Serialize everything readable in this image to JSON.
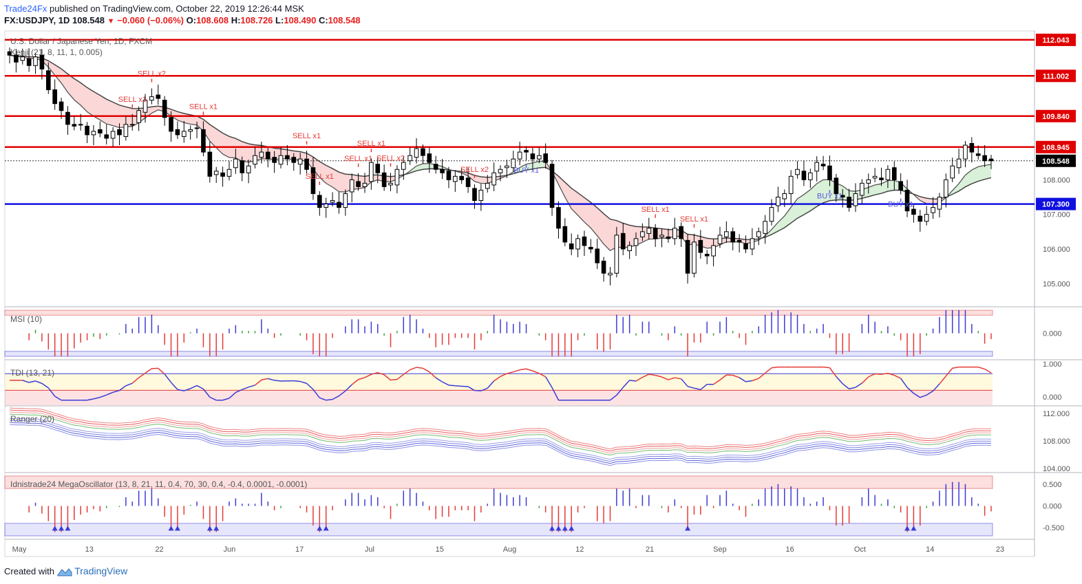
{
  "header": {
    "publisher": "Trade24Fx",
    "published_text": "published on TradingView.com, October 22, 2019 12:26:44 MSK",
    "symbol": "FX:USDJPY, 1D",
    "last": "108.548",
    "change": "−0.060 (−0.06%)",
    "open_label": "O:",
    "open": "108.608",
    "high_label": "H:",
    "high": "108.726",
    "low_label": "L:",
    "low": "108.490",
    "close_label": "C:",
    "close": "108.548"
  },
  "legend": {
    "main_title": "U.S. Dollar / Japanese Yen, 1D, FXCM",
    "kenji": "Kenji (21, 8, 11, 1, 0.005)",
    "msi": "MSI (10)",
    "tdi": "TDI (13, 21)",
    "ranger": "Ranger (20)",
    "mega": "Idnistrade24 MegaOscillator (13, 8, 21, 11, 0.4, 70, 30, 0.4, -0.4, 0.0001, -0.0001)"
  },
  "footer": {
    "created_with": "Created with",
    "brand": "TradingView"
  },
  "colors": {
    "up": "#ffffff",
    "down": "#000000",
    "resistance": "#e00000",
    "support": "#1010e0",
    "sell": "#e53935",
    "buy": "#5b5bdc",
    "price_tag": "#000000"
  },
  "chart_data": {
    "type": "candlestick",
    "price_axis": {
      "ticks": [
        "105.000",
        "106.000",
        "107.000",
        "108.000",
        "109.000"
      ],
      "ylim": [
        104.35,
        112.3
      ]
    },
    "time_axis": {
      "ticks": [
        "May",
        "13",
        "22",
        "Jun",
        "17",
        "Jul",
        "15",
        "Aug",
        "12",
        "21",
        "Sep",
        "16",
        "Oct",
        "14",
        "23"
      ]
    },
    "levels": [
      {
        "value": 112.043,
        "label": "112.043",
        "kind": "resistance"
      },
      {
        "value": 111.002,
        "label": "111.002",
        "kind": "resistance"
      },
      {
        "value": 109.84,
        "label": "109.840",
        "kind": "resistance"
      },
      {
        "value": 108.945,
        "label": "108.945",
        "kind": "resistance"
      },
      {
        "value": 107.3,
        "label": "107.300",
        "kind": "support"
      }
    ],
    "last_price": {
      "value": 108.548,
      "label": "108.548"
    },
    "close_series": [
      111.6,
      111.4,
      111.55,
      111.3,
      111.55,
      111.2,
      110.6,
      110.2,
      110.0,
      109.6,
      109.55,
      109.6,
      109.3,
      109.4,
      109.35,
      109.2,
      109.4,
      109.3,
      109.6,
      109.6,
      110.0,
      110.3,
      110.4,
      110.35,
      109.8,
      109.4,
      109.3,
      109.4,
      109.45,
      109.5,
      108.8,
      108.1,
      108.25,
      108.1,
      108.3,
      108.6,
      108.2,
      108.4,
      108.7,
      108.8,
      108.6,
      108.5,
      108.7,
      108.6,
      108.5,
      108.6,
      108.3,
      107.6,
      107.2,
      107.3,
      107.4,
      107.2,
      107.6,
      108.0,
      107.8,
      107.9,
      108.5,
      108.2,
      107.8,
      107.9,
      108.3,
      108.5,
      108.7,
      108.9,
      108.7,
      108.5,
      108.3,
      108.2,
      108.0,
      108.1,
      108.0,
      107.8,
      107.4,
      107.7,
      107.9,
      108.2,
      108.3,
      108.4,
      108.6,
      108.8,
      108.8,
      108.6,
      108.7,
      108.5,
      107.2,
      106.6,
      106.2,
      106.0,
      106.3,
      106.1,
      106.0,
      105.6,
      105.3,
      105.3,
      106.4,
      106.0,
      106.1,
      106.3,
      106.5,
      106.6,
      106.3,
      106.4,
      106.3,
      106.6,
      106.3,
      105.3,
      106.2,
      105.9,
      105.8,
      106.1,
      106.4,
      106.5,
      106.2,
      106.2,
      106.0,
      106.3,
      106.5,
      106.8,
      107.2,
      107.5,
      107.6,
      108.1,
      108.3,
      108.0,
      108.2,
      108.5,
      108.4,
      108.0,
      107.6,
      107.5,
      107.2,
      107.6,
      107.9,
      108.0,
      108.1,
      108.0,
      108.3,
      108.0,
      107.7,
      107.1,
      107.0,
      106.8,
      107.0,
      107.2,
      107.5,
      108.0,
      108.4,
      108.6,
      109.0,
      108.8,
      108.7,
      108.55,
      108.548
    ],
    "series": [
      {
        "name": "Kenji fast"
      },
      {
        "name": "Kenji slow"
      }
    ],
    "signals": [
      {
        "text": "SELL x1"
      },
      {
        "text": "SELL x2"
      },
      {
        "text": "SELL x1"
      },
      {
        "text": "SELL x1"
      },
      {
        "text": "SELL x1"
      },
      {
        "text": "SELL x1"
      },
      {
        "text": "SELL x1"
      },
      {
        "text": "SELL x2"
      },
      {
        "text": "SELL x2"
      },
      {
        "text": "BUY x1"
      },
      {
        "text": "SELL x1"
      },
      {
        "text": "SELL x1"
      },
      {
        "text": "BUY x1"
      },
      {
        "text": "BUY x1"
      }
    ],
    "panes": {
      "msi": {
        "ticks": [
          "0.000"
        ],
        "ylim": [
          -1,
          1
        ]
      },
      "tdi": {
        "ticks": [
          "1.000",
          "0.000"
        ],
        "ylim": [
          -0.25,
          1.1
        ]
      },
      "ranger": {
        "ticks": [
          "112.000",
          "108.000",
          "104.000"
        ],
        "ylim": [
          103.5,
          113
        ]
      },
      "mega": {
        "ticks": [
          "0.500",
          "0.000",
          "-0.500"
        ],
        "ylim": [
          -0.75,
          0.75
        ]
      }
    }
  }
}
